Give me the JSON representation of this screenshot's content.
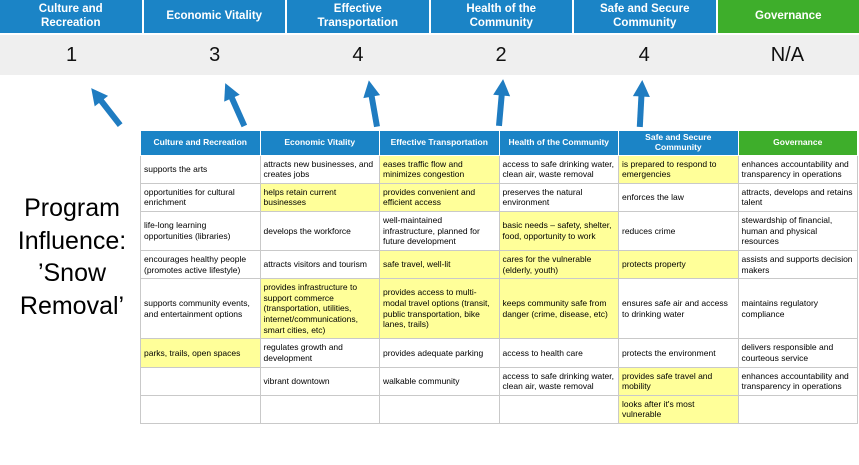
{
  "title": "Program Influence: ’Snow Removal’",
  "colors": {
    "accent_blue": "#1B84C6",
    "accent_green": "#3EAE2B",
    "highlight_yellow": "#FFFF99",
    "score_band_gray": "#EFEFEF",
    "arrow_blue": "#1F7CC1",
    "table_border": "#C9C9C9"
  },
  "scoreboard": {
    "categories": [
      {
        "label": "Culture and Recreation",
        "score": "1",
        "color": "blue"
      },
      {
        "label": "Economic Vitality",
        "score": "3",
        "color": "blue"
      },
      {
        "label": "Effective Transportation",
        "score": "4",
        "color": "blue"
      },
      {
        "label": "Health of the Community",
        "score": "2",
        "color": "blue"
      },
      {
        "label": "Safe and Secure Community",
        "score": "4",
        "color": "blue"
      },
      {
        "label": "Governance",
        "score": "N/A",
        "color": "green"
      }
    ]
  },
  "matrix": {
    "headers": [
      {
        "label": "Culture and Recreation",
        "color": "blue"
      },
      {
        "label": "Economic Vitality",
        "color": "blue"
      },
      {
        "label": "Effective Transportation",
        "color": "blue"
      },
      {
        "label": "Health of the Community",
        "color": "blue"
      },
      {
        "label": "Safe and Secure Community",
        "color": "blue"
      },
      {
        "label": "Governance",
        "color": "green"
      }
    ],
    "rows": [
      [
        {
          "text": "supports the arts",
          "highlight": false
        },
        {
          "text": "attracts new businesses, and creates jobs",
          "highlight": false
        },
        {
          "text": "eases traffic flow and minimizes congestion",
          "highlight": true
        },
        {
          "text": "access to safe drinking water, clean air, waste removal",
          "highlight": false
        },
        {
          "text": "is prepared to respond to emergencies",
          "highlight": true
        },
        {
          "text": "enhances accountability and transparency in operations",
          "highlight": false
        }
      ],
      [
        {
          "text": "opportunities for cultural enrichment",
          "highlight": false
        },
        {
          "text": "helps retain current businesses",
          "highlight": true
        },
        {
          "text": "provides convenient and efficient access",
          "highlight": true
        },
        {
          "text": "preserves the natural environment",
          "highlight": false
        },
        {
          "text": "enforces the law",
          "highlight": false
        },
        {
          "text": "attracts, develops and retains talent",
          "highlight": false
        }
      ],
      [
        {
          "text": "life-long learning opportunities (libraries)",
          "highlight": false
        },
        {
          "text": "develops the workforce",
          "highlight": false
        },
        {
          "text": "well-maintained infrastructure, planned for future development",
          "highlight": false
        },
        {
          "text": "basic needs – safety, shelter, food, opportunity to work",
          "highlight": true
        },
        {
          "text": "reduces crime",
          "highlight": false
        },
        {
          "text": "stewardship of financial, human and physical resources",
          "highlight": false
        }
      ],
      [
        {
          "text": "encourages healthy people (promotes active lifestyle)",
          "highlight": false
        },
        {
          "text": "attracts visitors and tourism",
          "highlight": false
        },
        {
          "text": "safe travel, well-lit",
          "highlight": true
        },
        {
          "text": "cares for the vulnerable (elderly, youth)",
          "highlight": true
        },
        {
          "text": "protects property",
          "highlight": true
        },
        {
          "text": "assists and supports decision makers",
          "highlight": false
        }
      ],
      [
        {
          "text": "supports community events, and entertainment options",
          "highlight": false
        },
        {
          "text": "provides infrastructure to support commerce (transportation, utilities, internet/communications, smart cities, etc)",
          "highlight": true
        },
        {
          "text": "provides access to multi-modal travel options (transit, public transportation, bike lanes, trails)",
          "highlight": true
        },
        {
          "text": "keeps community safe from danger (crime, disease, etc)",
          "highlight": true
        },
        {
          "text": "ensures safe air and access to drinking water",
          "highlight": false
        },
        {
          "text": "maintains regulatory compliance",
          "highlight": false
        }
      ],
      [
        {
          "text": "parks, trails, open spaces",
          "highlight": true
        },
        {
          "text": "regulates growth and development",
          "highlight": false
        },
        {
          "text": "provides adequate parking",
          "highlight": false
        },
        {
          "text": "access to health care",
          "highlight": false
        },
        {
          "text": "protects the environment",
          "highlight": false
        },
        {
          "text": "delivers responsible and courteous service",
          "highlight": false
        }
      ],
      [
        {
          "text": "",
          "highlight": false
        },
        {
          "text": "vibrant downtown",
          "highlight": false
        },
        {
          "text": "walkable community",
          "highlight": false
        },
        {
          "text": "access to safe drinking water, clean air, waste removal",
          "highlight": false
        },
        {
          "text": "provides safe travel and mobility",
          "highlight": true
        },
        {
          "text": "enhances accountability and transparency in operations",
          "highlight": false
        }
      ],
      [
        {
          "text": "",
          "highlight": false
        },
        {
          "text": "",
          "highlight": false
        },
        {
          "text": "",
          "highlight": false
        },
        {
          "text": "",
          "highlight": false
        },
        {
          "text": "looks after it's most vulnerable",
          "highlight": true
        },
        {
          "text": "",
          "highlight": false
        }
      ]
    ]
  }
}
